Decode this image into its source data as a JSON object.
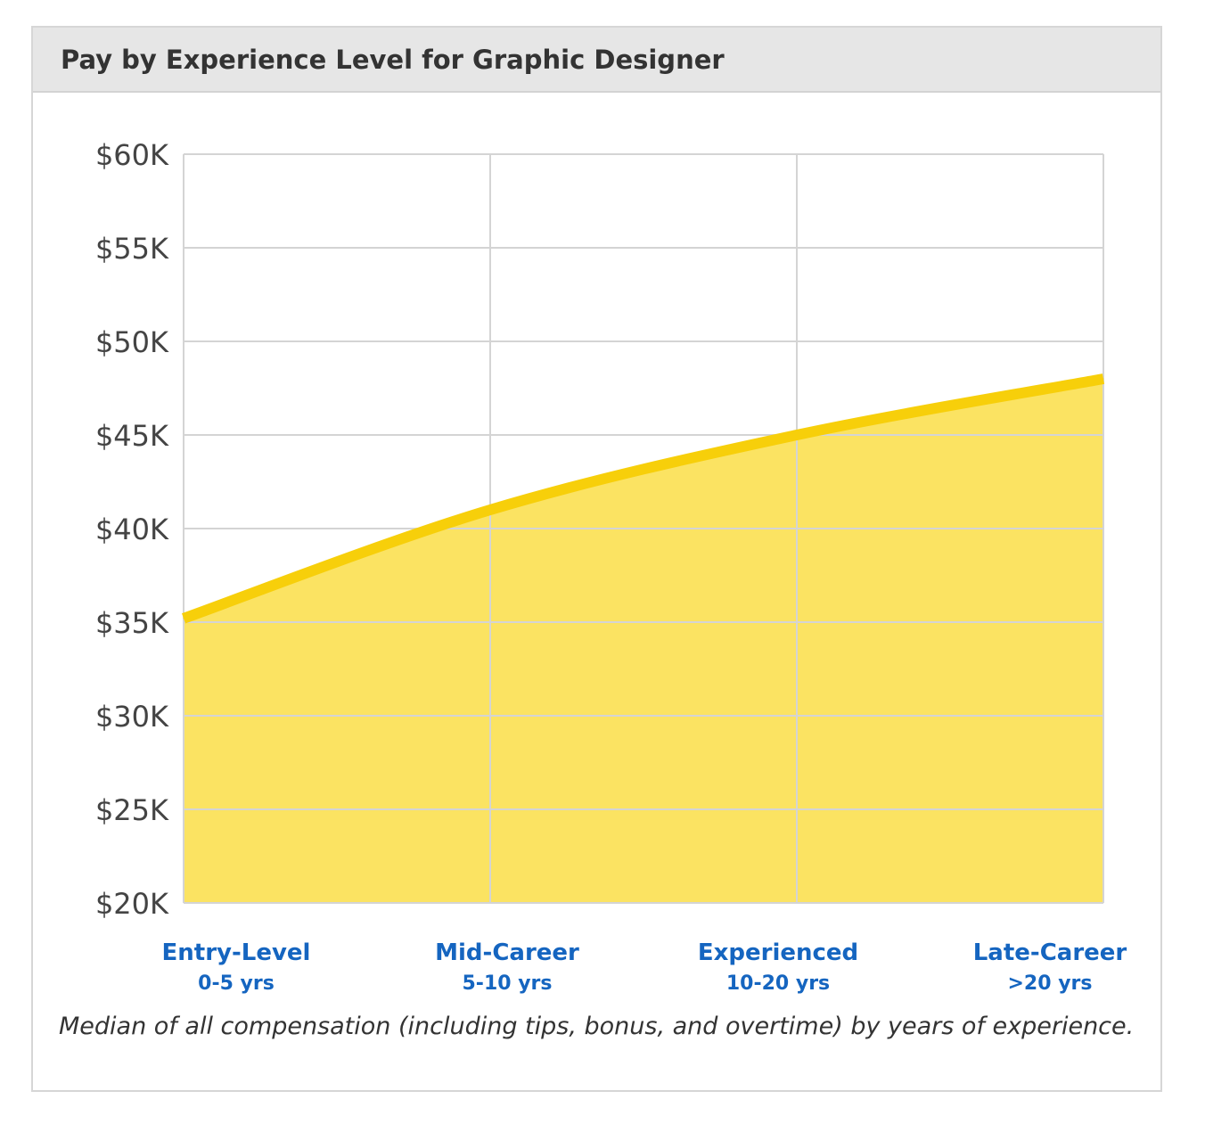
{
  "chart_data": {
    "type": "area",
    "title": "Pay by Experience Level for Graphic Designer",
    "categories": [
      "Entry-Level",
      "Mid-Career",
      "Experienced",
      "Late-Career"
    ],
    "category_sublabels": [
      "0-5 yrs",
      "5-10 yrs",
      "10-20 yrs",
      ">20 yrs"
    ],
    "series": [
      {
        "values": [
          35200,
          41000,
          45000,
          48000
        ]
      }
    ],
    "y_ticks": [
      "$20K",
      "$25K",
      "$30K",
      "$35K",
      "$40K",
      "$45K",
      "$50K",
      "$55K",
      "$60K"
    ],
    "y_tick_values": [
      20000,
      25000,
      30000,
      35000,
      40000,
      45000,
      50000,
      55000,
      60000
    ],
    "ylim": [
      20000,
      60000
    ],
    "xlabel": "",
    "ylabel": "",
    "grid": true,
    "line_color": "#f7cf0a",
    "fill_color": "#fbe362",
    "grid_color": "#d4d4d4",
    "category_color": "#1565c0",
    "caption": "Median of all compensation (including tips, bonus, and overtime) by years of experience."
  }
}
